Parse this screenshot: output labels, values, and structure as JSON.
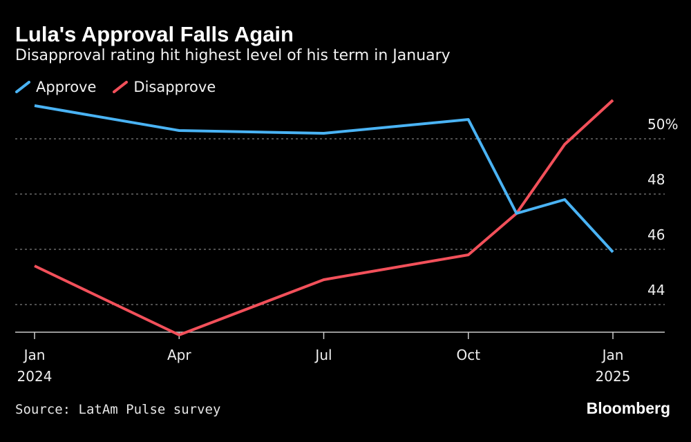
{
  "header": {
    "title": "Lula's Approval Falls Again",
    "subtitle": "Disapproval rating hit highest level of his term in January"
  },
  "footer": {
    "source": "Source: LatAm Pulse survey",
    "brand": "Bloomberg"
  },
  "colors": {
    "approve": "#4ab3f4",
    "disapprove": "#f2505a",
    "grid": "#808080",
    "axis": "#cccccc"
  },
  "chart_data": {
    "type": "line",
    "title": "Lula's Approval Falls Again",
    "subtitle": "Disapproval rating hit highest level of his term in January",
    "xlabel": "",
    "ylabel": "",
    "x_months": [
      0,
      3,
      6,
      9,
      10,
      11,
      12
    ],
    "x_ticks": [
      {
        "month": 0,
        "line1": "Jan",
        "line2": "2024"
      },
      {
        "month": 3,
        "line1": "Apr",
        "line2": ""
      },
      {
        "month": 6,
        "line1": "Jul",
        "line2": ""
      },
      {
        "month": 9,
        "line1": "Oct",
        "line2": ""
      },
      {
        "month": 12,
        "line1": "Jan",
        "line2": "2025"
      }
    ],
    "y_ticks": [
      {
        "value": 44,
        "label": "44"
      },
      {
        "value": 46,
        "label": "46"
      },
      {
        "value": 48,
        "label": "48"
      },
      {
        "value": 50,
        "label": "50%"
      }
    ],
    "ylim": [
      43,
      52
    ],
    "xlim": [
      0,
      12.5
    ],
    "grid": true,
    "legend_position": "top-left",
    "series": [
      {
        "name": "Approve",
        "color": "#4ab3f4",
        "values": [
          51.2,
          50.3,
          50.2,
          50.7,
          47.3,
          47.8,
          45.9
        ]
      },
      {
        "name": "Disapprove",
        "color": "#f2505a",
        "values": [
          45.4,
          42.9,
          44.9,
          45.8,
          47.3,
          49.8,
          51.4
        ]
      }
    ]
  }
}
